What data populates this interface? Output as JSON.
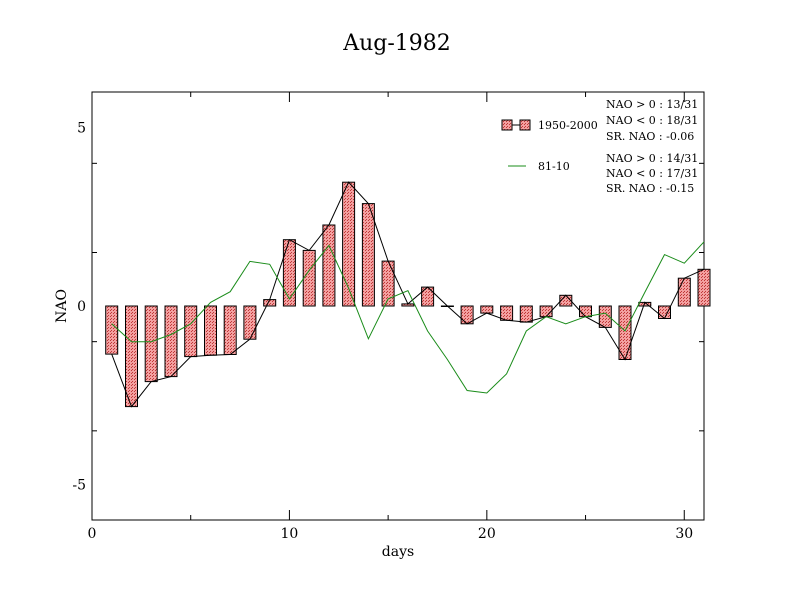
{
  "chart_data": {
    "type": "bar",
    "title": "Aug-1982",
    "xlabel": "days",
    "ylabel": "NAO",
    "xlim": [
      0,
      31
    ],
    "ylim": [
      -6,
      6
    ],
    "xticks": [
      0,
      10,
      20,
      30
    ],
    "yticks": [
      -5,
      0,
      5
    ],
    "grid": false,
    "legend_position": "top-right",
    "colors": {
      "bar_fill": "#f08080",
      "bar_edge": "#000000",
      "line_81_10": "#1a8c1a"
    },
    "series": [
      {
        "name": "1950-2000",
        "kind": "bar",
        "x": [
          1,
          2,
          3,
          4,
          5,
          6,
          7,
          8,
          9,
          10,
          11,
          12,
          13,
          14,
          15,
          16,
          17,
          18,
          19,
          20,
          21,
          22,
          23,
          24,
          25,
          26,
          27,
          28,
          29,
          30,
          31
        ],
        "values": [
          -1.35,
          -2.82,
          -2.12,
          -1.98,
          -1.42,
          -1.38,
          -1.36,
          -0.93,
          0.18,
          1.86,
          1.56,
          2.27,
          3.47,
          2.87,
          1.26,
          0.06,
          0.53,
          0.0,
          -0.5,
          -0.2,
          -0.4,
          -0.45,
          -0.3,
          0.3,
          -0.3,
          -0.6,
          -1.5,
          0.1,
          -0.35,
          0.78,
          1.03
        ]
      },
      {
        "name": "81-10",
        "kind": "line",
        "x": [
          1,
          2,
          3,
          4,
          5,
          6,
          7,
          8,
          9,
          10,
          11,
          12,
          13,
          14,
          15,
          16,
          17,
          18,
          19,
          20,
          21,
          22,
          23,
          24,
          25,
          26,
          27,
          28,
          29,
          30,
          31
        ],
        "values": [
          -0.5,
          -1.0,
          -1.0,
          -0.8,
          -0.5,
          0.1,
          0.4,
          1.25,
          1.17,
          0.2,
          1.0,
          1.7,
          0.5,
          -0.92,
          0.2,
          0.43,
          -0.7,
          -1.5,
          -2.37,
          -2.44,
          -1.9,
          -0.7,
          -0.3,
          -0.5,
          -0.3,
          -0.2,
          -0.7,
          0.38,
          1.44,
          1.2,
          1.8
        ]
      }
    ],
    "stats": [
      {
        "line1": "NAO > 0 : 13/31",
        "line2": "NAO < 0 : 18/31",
        "line3": "SR. NAO : -0.06"
      },
      {
        "line1": "NAO > 0 : 14/31",
        "line2": "NAO < 0 : 17/31",
        "line3": "SR. NAO : -0.15"
      }
    ]
  }
}
